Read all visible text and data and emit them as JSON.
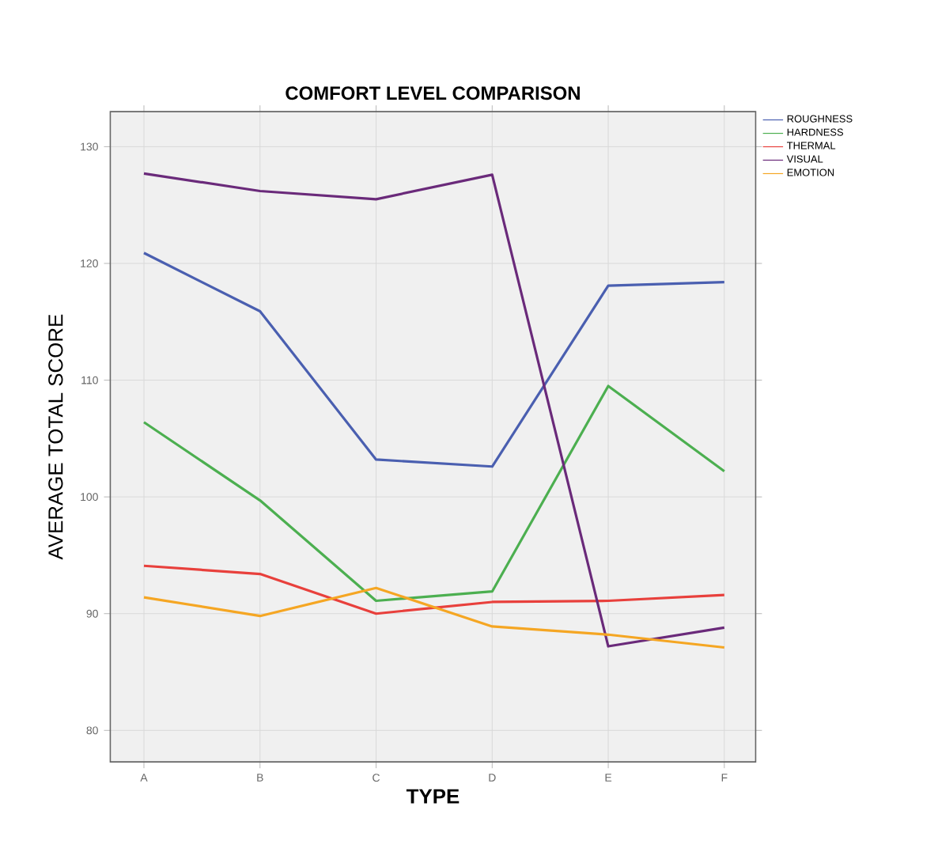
{
  "chart_data": {
    "type": "line",
    "title": "COMFORT LEVEL COMPARISON",
    "xlabel": "TYPE",
    "ylabel": "AVERAGE TOTAL SCORE",
    "categories": [
      "A",
      "B",
      "C",
      "D",
      "E",
      "F"
    ],
    "series": [
      {
        "name": "ROUGHNESS",
        "color": "#4a5fb0",
        "values": [
          120.9,
          115.9,
          103.2,
          102.6,
          118.1,
          118.4
        ]
      },
      {
        "name": "HARDNESS",
        "color": "#4caf50",
        "values": [
          106.4,
          99.7,
          91.1,
          91.9,
          109.5,
          102.2
        ]
      },
      {
        "name": "THERMAL",
        "color": "#e8403c",
        "values": [
          94.1,
          93.4,
          90.0,
          91.0,
          91.1,
          91.6
        ]
      },
      {
        "name": "VISUAL",
        "color": "#6a2a7a",
        "values": [
          127.7,
          126.2,
          125.5,
          127.6,
          87.2,
          88.8
        ]
      },
      {
        "name": "EMOTION",
        "color": "#f5a623",
        "values": [
          91.4,
          89.8,
          92.2,
          88.9,
          88.2,
          87.1
        ]
      }
    ],
    "ylim": [
      77.3,
      133
    ],
    "yticks": [
      80,
      90,
      100,
      110,
      120,
      130
    ],
    "grid": true,
    "legend": "top right",
    "marker": "none",
    "line_style": "solid"
  }
}
